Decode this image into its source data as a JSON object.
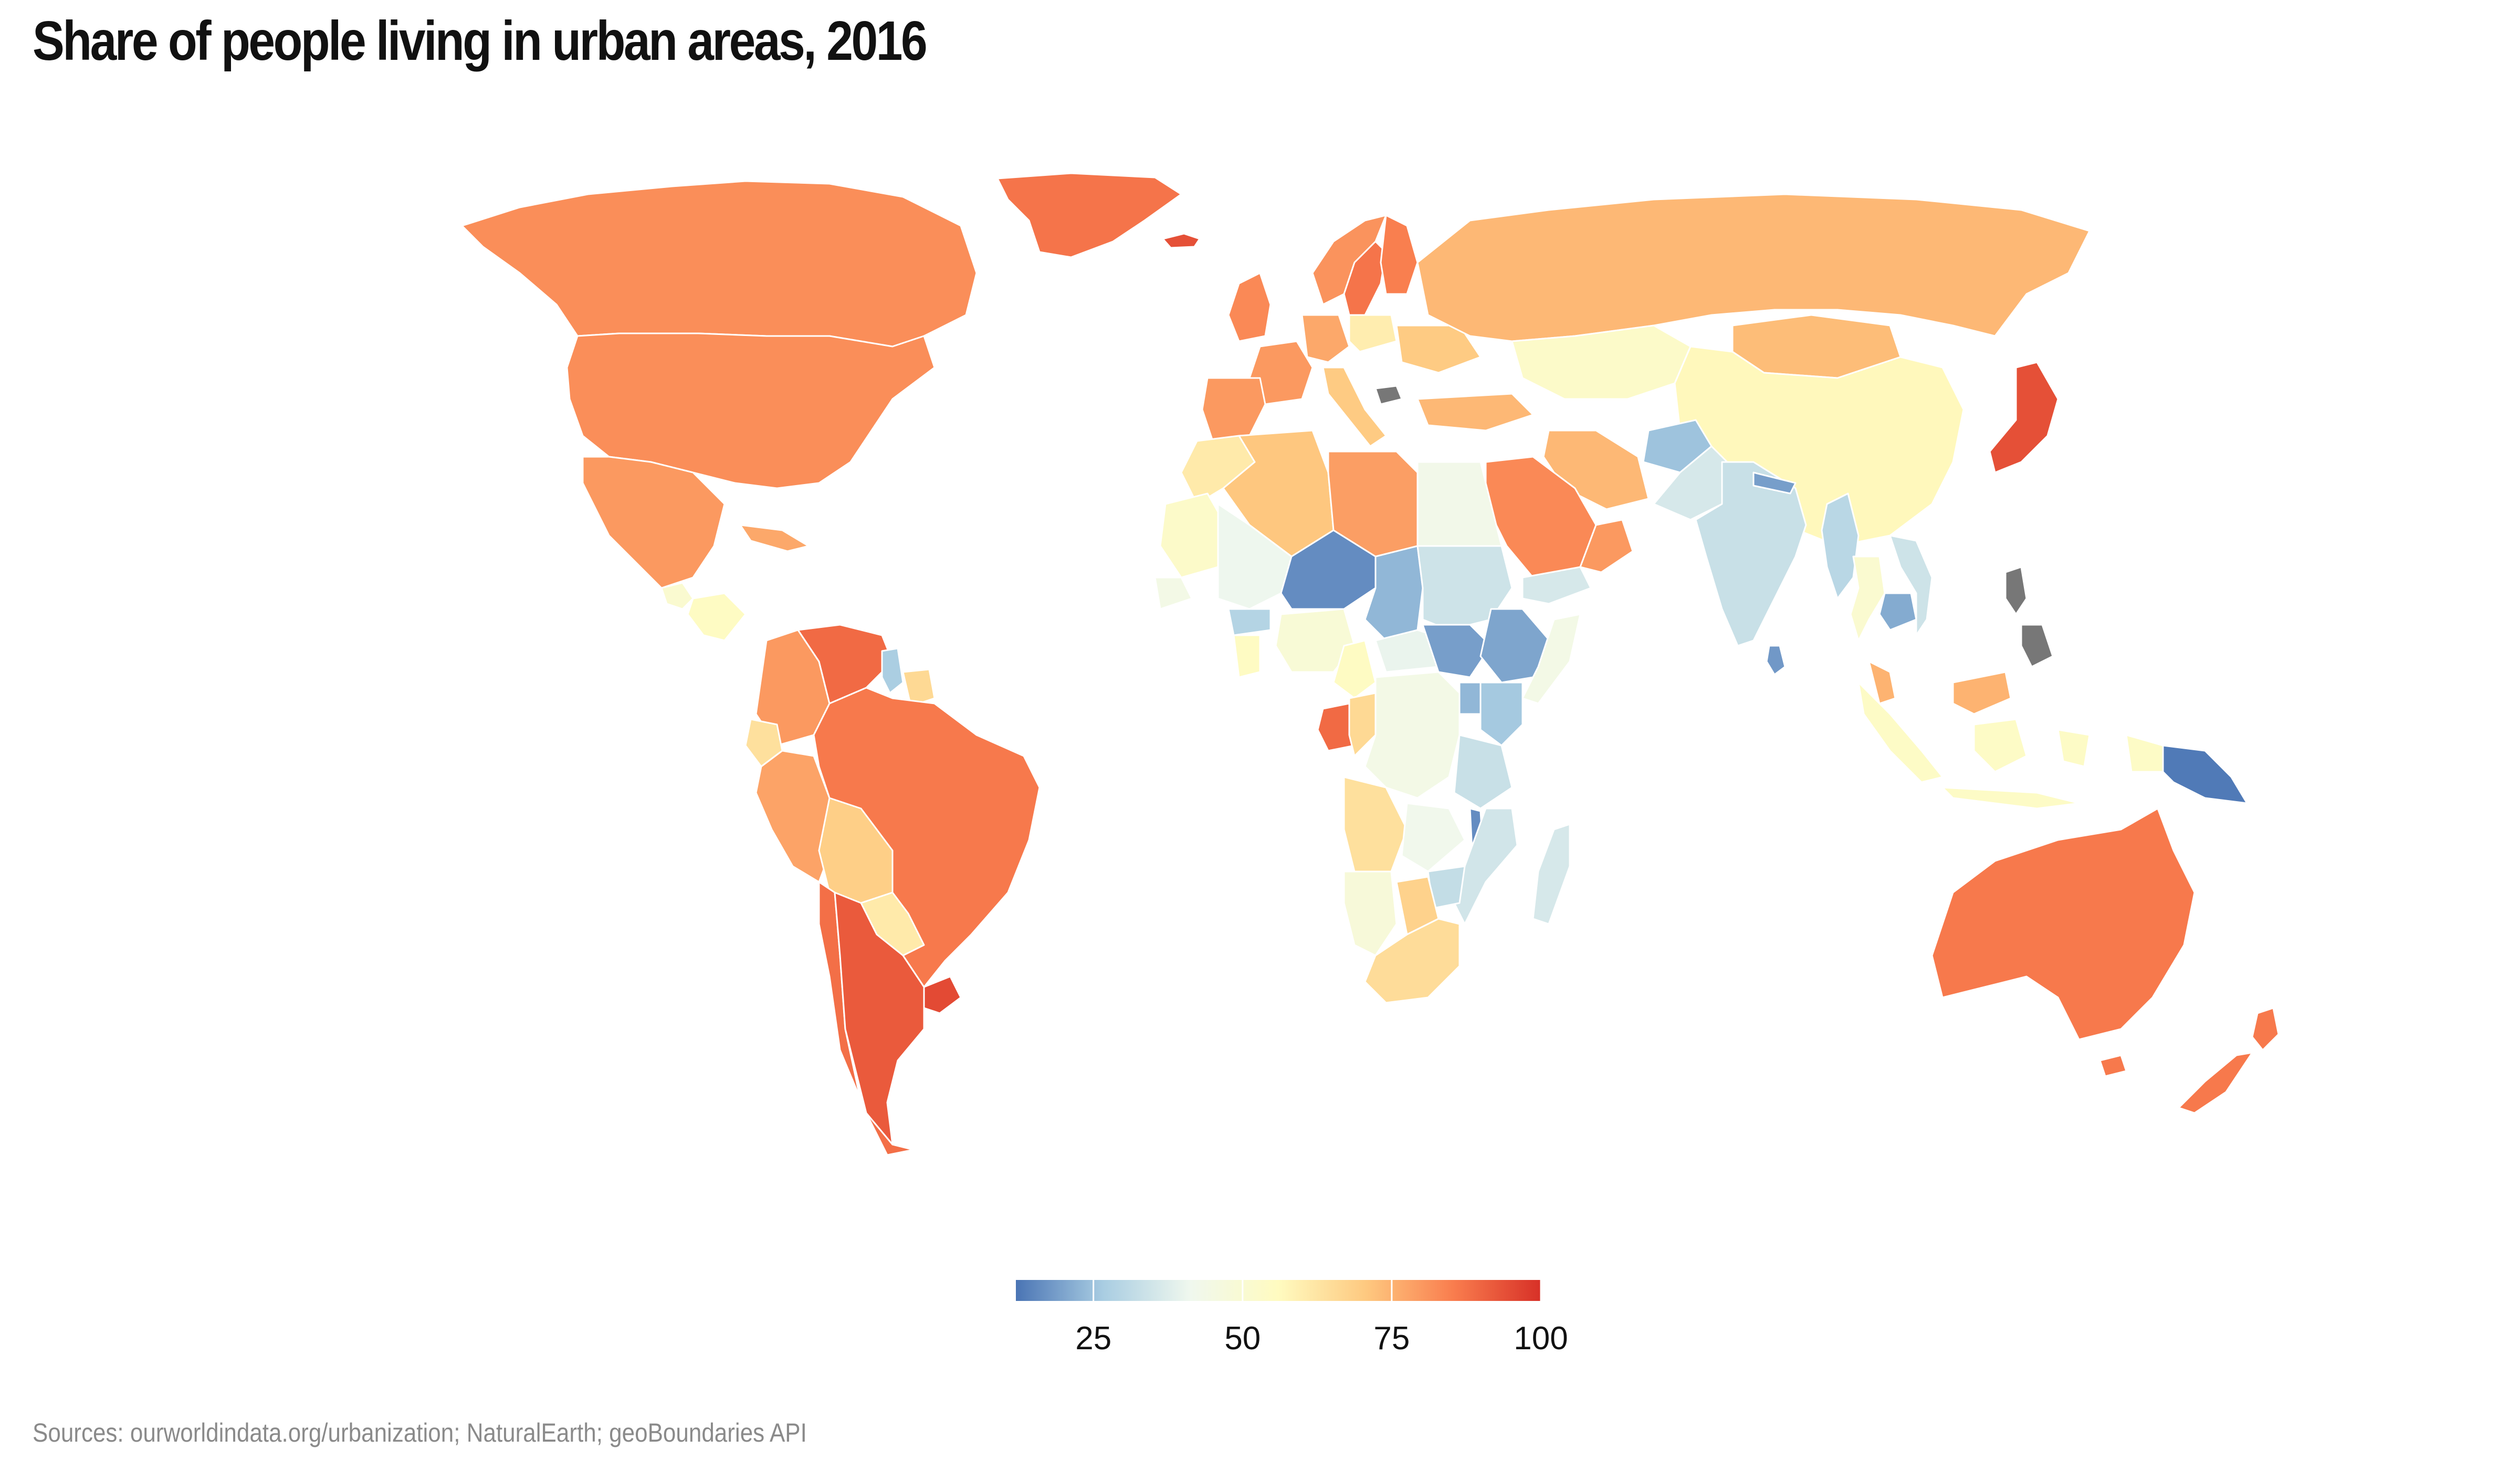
{
  "title": "Share of people living in urban areas, 2016",
  "source": "Sources: ourworldindata.org/urbanization; NaturalEarth; geoBoundaries API",
  "legend": {
    "min": 12,
    "max": 100,
    "ticks": [
      "25",
      "50",
      "75",
      "100"
    ],
    "stops": [
      "#4a74b4",
      "#a9cde2",
      "#f0f8ee",
      "#fffbc0",
      "#fec980",
      "#f97d4e",
      "#d73027"
    ],
    "no_data_color": "#777777"
  },
  "chart_data": {
    "type": "choropleth",
    "value_label": "Share of people living in urban areas (%)",
    "regions": [
      {
        "name": "Canada",
        "value": 82
      },
      {
        "name": "United States",
        "value": 82
      },
      {
        "name": "Greenland",
        "value": 87
      },
      {
        "name": "Iceland",
        "value": 94
      },
      {
        "name": "Mexico",
        "value": 80
      },
      {
        "name": "Guatemala",
        "value": 51
      },
      {
        "name": "Honduras",
        "value": 55
      },
      {
        "name": "Cuba",
        "value": 77
      },
      {
        "name": "Colombia",
        "value": 80
      },
      {
        "name": "Venezuela",
        "value": 89
      },
      {
        "name": "Guyana",
        "value": 27
      },
      {
        "name": "Suriname",
        "value": 66
      },
      {
        "name": "Ecuador",
        "value": 64
      },
      {
        "name": "Peru",
        "value": 78
      },
      {
        "name": "Brazil",
        "value": 86
      },
      {
        "name": "Bolivia",
        "value": 69
      },
      {
        "name": "Paraguay",
        "value": 61
      },
      {
        "name": "Chile",
        "value": 88
      },
      {
        "name": "Argentina",
        "value": 92
      },
      {
        "name": "Uruguay",
        "value": 95
      },
      {
        "name": "Norway",
        "value": 81
      },
      {
        "name": "Sweden",
        "value": 87
      },
      {
        "name": "Finland",
        "value": 85
      },
      {
        "name": "United Kingdom",
        "value": 83
      },
      {
        "name": "France",
        "value": 80
      },
      {
        "name": "Spain",
        "value": 80
      },
      {
        "name": "Germany",
        "value": 77
      },
      {
        "name": "Italy",
        "value": 70
      },
      {
        "name": "Poland",
        "value": 60
      },
      {
        "name": "Ukraine",
        "value": 70
      },
      {
        "name": "Russia",
        "value": 74
      },
      {
        "name": "Kazakhstan",
        "value": 53
      },
      {
        "name": "Turkey",
        "value": 74
      },
      {
        "name": "Iran",
        "value": 74
      },
      {
        "name": "Saudi Arabia",
        "value": 83
      },
      {
        "name": "Oman",
        "value": 80
      },
      {
        "name": "Yemen",
        "value": 36
      },
      {
        "name": "Afghanistan",
        "value": 25
      },
      {
        "name": "Pakistan",
        "value": 36
      },
      {
        "name": "India",
        "value": 33
      },
      {
        "name": "Nepal",
        "value": 19
      },
      {
        "name": "Sri Lanka",
        "value": 18
      },
      {
        "name": "Mongolia",
        "value": 73
      },
      {
        "name": "China",
        "value": 57
      },
      {
        "name": "Japan",
        "value": 94
      },
      {
        "name": "Myanmar",
        "value": 30
      },
      {
        "name": "Thailand",
        "value": 51
      },
      {
        "name": "Cambodia",
        "value": 21
      },
      {
        "name": "Vietnam",
        "value": 34
      },
      {
        "name": "Malaysia",
        "value": 75
      },
      {
        "name": "Indonesia",
        "value": 54
      },
      {
        "name": "Papua New Guinea",
        "value": 13
      },
      {
        "name": "Australia",
        "value": 86
      },
      {
        "name": "New Zealand",
        "value": 86
      },
      {
        "name": "Morocco",
        "value": 61
      },
      {
        "name": "Algeria",
        "value": 71
      },
      {
        "name": "Libya",
        "value": 79
      },
      {
        "name": "Egypt",
        "value": 43
      },
      {
        "name": "Mali",
        "value": 41
      },
      {
        "name": "Niger",
        "value": 16
      },
      {
        "name": "Chad",
        "value": 23
      },
      {
        "name": "Sudan",
        "value": 34
      },
      {
        "name": "Mauritania",
        "value": 53
      },
      {
        "name": "Senegal",
        "value": 44
      },
      {
        "name": "Burkina Faso",
        "value": 29
      },
      {
        "name": "Ghana",
        "value": 55
      },
      {
        "name": "Nigeria",
        "value": 49
      },
      {
        "name": "Cameroon",
        "value": 55
      },
      {
        "name": "Central African Republic",
        "value": 40
      },
      {
        "name": "South Sudan",
        "value": 19
      },
      {
        "name": "Ethiopia",
        "value": 20
      },
      {
        "name": "Somalia",
        "value": 44
      },
      {
        "name": "Kenya",
        "value": 26
      },
      {
        "name": "Uganda",
        "value": 23
      },
      {
        "name": "Gabon",
        "value": 89
      },
      {
        "name": "Congo",
        "value": 66
      },
      {
        "name": "DR Congo",
        "value": 44
      },
      {
        "name": "Tanzania",
        "value": 33
      },
      {
        "name": "Angola",
        "value": 64
      },
      {
        "name": "Zambia",
        "value": 42
      },
      {
        "name": "Mozambique",
        "value": 35
      },
      {
        "name": "Malawi",
        "value": 16
      },
      {
        "name": "Zimbabwe",
        "value": 32
      },
      {
        "name": "Namibia",
        "value": 48
      },
      {
        "name": "Botswana",
        "value": 68
      },
      {
        "name": "South Africa",
        "value": 65
      },
      {
        "name": "Madagascar",
        "value": 36
      },
      {
        "name": "Kosovo",
        "value": null
      },
      {
        "name": "Philippines",
        "value": null
      }
    ]
  }
}
